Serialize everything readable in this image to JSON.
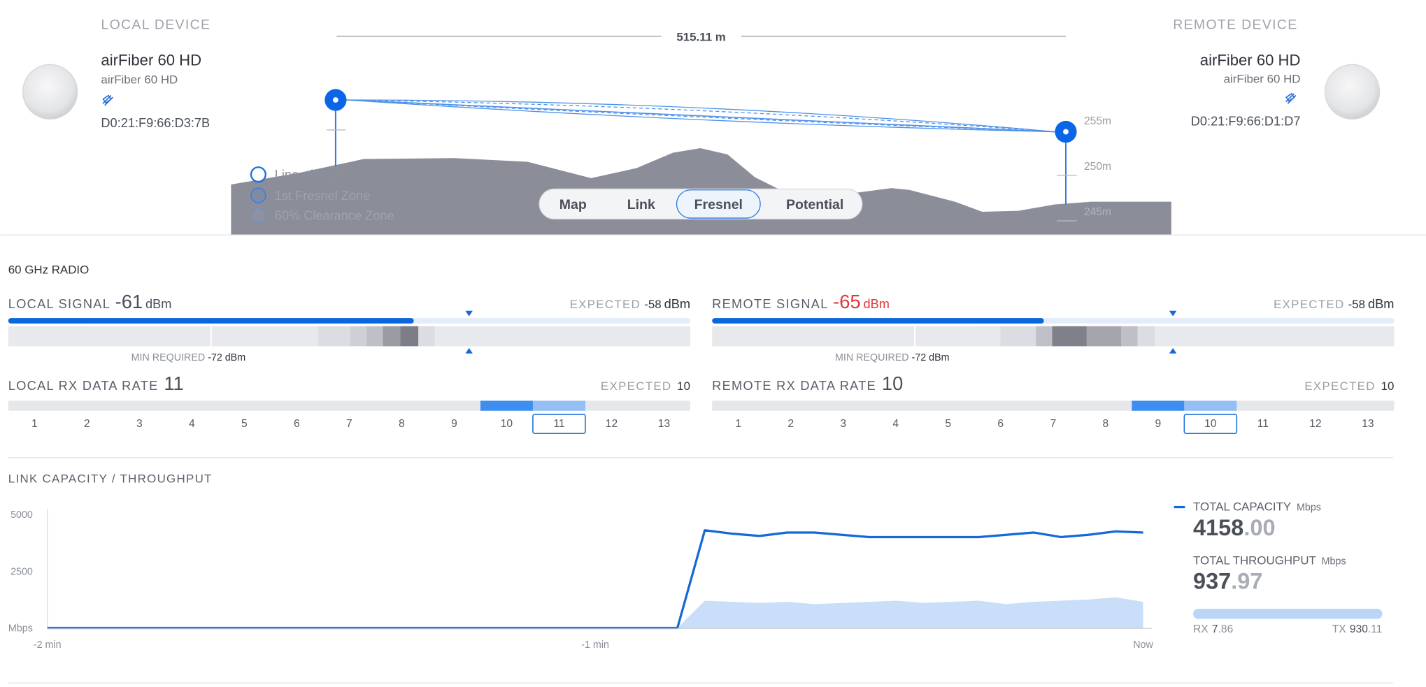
{
  "local_device": {
    "heading": "LOCAL DEVICE",
    "name": "airFiber 60 HD",
    "model": "airFiber 60 HD",
    "mac": "D0:21:F9:66:D3:7B"
  },
  "remote_device": {
    "heading": "REMOTE DEVICE",
    "name": "airFiber 60 HD",
    "model": "airFiber 60 HD",
    "mac": "D0:21:F9:66:D1:D7"
  },
  "distance": "515.11 m",
  "height_labels": [
    "255m",
    "250m",
    "245m"
  ],
  "legend": [
    "Line of Sight",
    "1st Fresnel Zone",
    "60% Clearance Zone"
  ],
  "tabs": {
    "items": [
      "Map",
      "Link",
      "Fresnel",
      "Potential"
    ],
    "selected": 2
  },
  "radio": {
    "title": "60 GHz RADIO",
    "local_signal": {
      "label": "LOCAL SIGNAL",
      "value": -61,
      "unit": "dBm",
      "value_color": "#4a4f59",
      "expected_label": "EXPECTED",
      "expected": -58,
      "expected_unit": "dBm",
      "min_label": "MIN REQUIRED",
      "min": -72,
      "min_unit": "dBm",
      "scale": [
        -83,
        -46
      ]
    },
    "remote_signal": {
      "label": "REMOTE SIGNAL",
      "value": -65,
      "unit": "dBm",
      "value_color": "#e0373d",
      "expected_label": "EXPECTED",
      "expected": -58,
      "expected_unit": "dBm",
      "min_label": "MIN REQUIRED",
      "min": -72,
      "min_unit": "dBm",
      "scale": [
        -83,
        -46
      ]
    },
    "local_rate": {
      "label": "LOCAL RX DATA RATE",
      "value": 11,
      "expected_label": "EXPECTED",
      "expected": 10,
      "rates": [
        1,
        2,
        3,
        4,
        5,
        6,
        7,
        8,
        9,
        10,
        11,
        12,
        13
      ]
    },
    "remote_rate": {
      "label": "REMOTE RX DATA RATE",
      "value": 10,
      "expected_label": "EXPECTED",
      "expected": 10,
      "rates": [
        1,
        2,
        3,
        4,
        5,
        6,
        7,
        8,
        9,
        10,
        11,
        12,
        13
      ]
    }
  },
  "chart_data": {
    "type": "line",
    "title": "LINK CAPACITY / THROUGHPUT",
    "unit": "Mbps",
    "categories": [
      "-2 min",
      null,
      null,
      null,
      null,
      null,
      null,
      null,
      null,
      null,
      null,
      null,
      null,
      null,
      null,
      null,
      null,
      null,
      null,
      null,
      "-1 min",
      null,
      null,
      null,
      null,
      null,
      null,
      null,
      null,
      null,
      null,
      null,
      null,
      null,
      null,
      null,
      null,
      null,
      null,
      null,
      "Now"
    ],
    "series": [
      {
        "name": "TOTAL CAPACITY",
        "color": "#1468d8",
        "fill": false,
        "values": [
          0,
          0,
          0,
          0,
          0,
          0,
          0,
          0,
          0,
          0,
          0,
          0,
          0,
          0,
          0,
          0,
          0,
          0,
          0,
          0,
          0,
          0,
          0,
          0,
          4300,
          4150,
          4050,
          4200,
          4200,
          4100,
          4000,
          4000,
          4000,
          4000,
          4000,
          4100,
          4200,
          4000,
          4100,
          4250,
          4200
        ]
      },
      {
        "name": "TOTAL THROUGHPUT",
        "color": "#c9def8",
        "fill": true,
        "values": [
          0,
          0,
          0,
          0,
          0,
          0,
          0,
          0,
          0,
          0,
          0,
          0,
          0,
          0,
          0,
          0,
          0,
          0,
          0,
          0,
          0,
          0,
          0,
          0,
          1200,
          1150,
          1100,
          1150,
          1050,
          1100,
          1150,
          1200,
          1100,
          1150,
          1200,
          1050,
          1150,
          1200,
          1250,
          1350,
          1150
        ]
      }
    ],
    "ylim": [
      0,
      5000
    ],
    "yticks": [
      {
        "value": 0,
        "label": "Mbps"
      },
      2500,
      5000
    ]
  },
  "summary": {
    "capacity_int": "4158",
    "capacity_frac": ".00",
    "throughput_int": "937",
    "throughput_frac": ".97",
    "rx_label": "RX",
    "rx_int": "7",
    "rx_frac": ".86",
    "tx_label": "TX",
    "tx_int": "930",
    "tx_frac": ".11"
  }
}
